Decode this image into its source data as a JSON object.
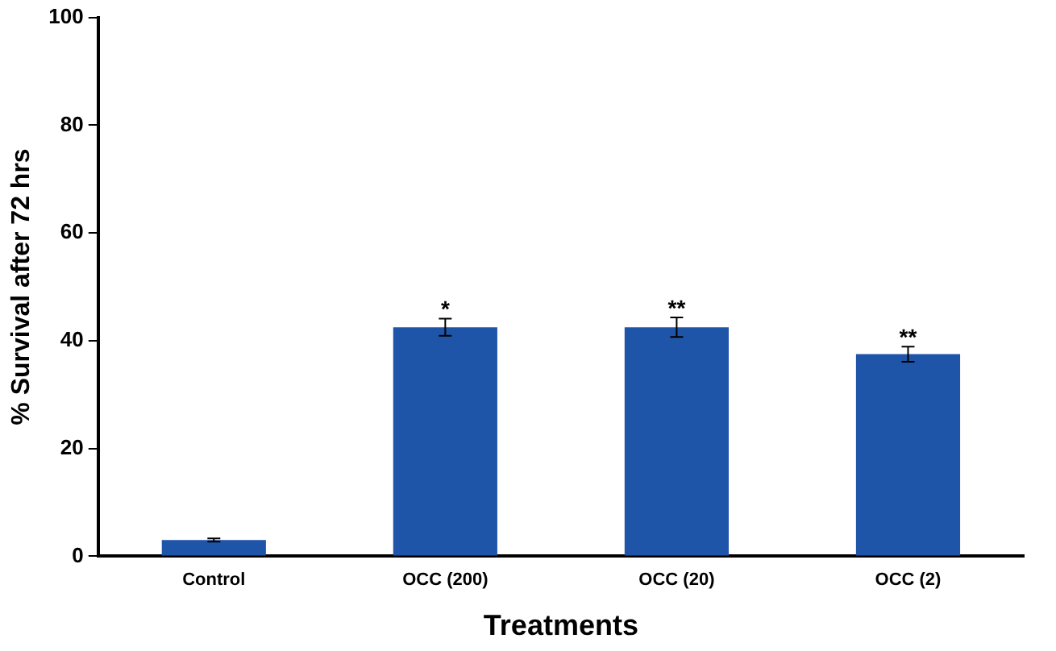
{
  "chart_data": {
    "type": "bar",
    "xlabel": "Treatments",
    "ylabel": "% Survival after 72 hrs",
    "categories": [
      "Control",
      "OCC (200)",
      "OCC (20)",
      "OCC (2)"
    ],
    "values": [
      3,
      42.5,
      42.5,
      37.5
    ],
    "errors": [
      0.3,
      1.6,
      1.8,
      1.4
    ],
    "color": "#1f55a8",
    "ylim": [
      0,
      100
    ],
    "yticks": [
      0,
      20,
      40,
      60,
      80,
      100
    ],
    "grid": false,
    "legend": false,
    "annotations": [
      {
        "text": "*",
        "x": "OCC (200)",
        "y": 42.5
      },
      {
        "text": "**",
        "x": "OCC (20)",
        "y": 42.5
      },
      {
        "text": "**",
        "x": "OCC (2)",
        "y": 37.5
      }
    ]
  }
}
